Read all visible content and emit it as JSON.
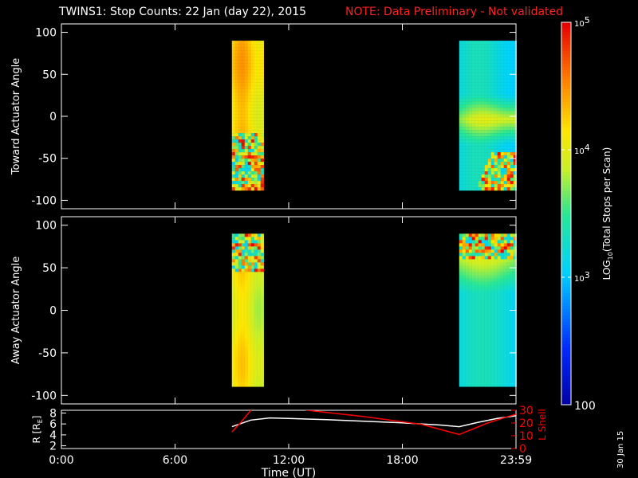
{
  "title": {
    "main": "TWINS1: Stop Counts: 22 Jan (day  22), 2015",
    "note": "NOTE: Data Preliminary - Not validated",
    "note_color": "#ff2020"
  },
  "footer_date": "30 Jan 15",
  "chart_data": [
    {
      "type": "heatmap",
      "ylabel": "Toward Actuator Angle",
      "ylim": [
        -110,
        110
      ],
      "yticks": [
        100,
        50,
        0,
        -50,
        -100
      ],
      "xlim_hours": [
        0,
        24
      ],
      "segments": [
        {
          "x_range_hours": [
            9.0,
            10.6
          ],
          "y_range": [
            -90,
            90
          ],
          "level": "orange-yellow",
          "noisy_region_y": [
            -90,
            -20
          ]
        },
        {
          "x_range_hours": [
            21.0,
            24.0
          ],
          "y_range": [
            -90,
            90
          ],
          "level": "cyan-to-orange",
          "noisy_region_y": [
            -90,
            -45
          ]
        }
      ]
    },
    {
      "type": "heatmap",
      "ylabel": "Away Actuator Angle",
      "ylim": [
        -110,
        110
      ],
      "yticks": [
        100,
        50,
        0,
        -50,
        -100
      ],
      "xlim_hours": [
        0,
        24
      ],
      "segments": [
        {
          "x_range_hours": [
            9.0,
            10.6
          ],
          "y_range": [
            -90,
            90
          ],
          "level": "yellow-green",
          "noisy_region_y": [
            45,
            90
          ]
        },
        {
          "x_range_hours": [
            21.0,
            24.0
          ],
          "y_range": [
            -90,
            90
          ],
          "level": "cyan-to-orange",
          "noisy_region_y": [
            60,
            90
          ]
        }
      ]
    },
    {
      "type": "line",
      "ylabel_left": "R [R",
      "ylabel_left_sub": "E",
      "ylabel_left_end": "]",
      "ylabel_right": "L Shell",
      "yleft_ticks": [
        8,
        6,
        4,
        2
      ],
      "yleft_lim": [
        1.5,
        8.5
      ],
      "yright_ticks": [
        30,
        20,
        10,
        0
      ],
      "yright_lim": [
        0,
        30
      ],
      "series": [
        {
          "axis": "left",
          "color": "#ffffff",
          "x": [
            9.0,
            10.0,
            11.0,
            12.0,
            14.0,
            16.0,
            18.0,
            20.0,
            21.0,
            22.0,
            23.0,
            24.0
          ],
          "y": [
            5.5,
            6.7,
            7.1,
            7.0,
            6.8,
            6.5,
            6.2,
            5.8,
            5.5,
            6.3,
            7.0,
            7.5
          ]
        },
        {
          "axis": "right",
          "color": "#ff0000",
          "x": [
            9.0,
            9.5,
            10.0,
            10.5,
            13.0,
            16.0,
            19.0,
            21.0,
            22.5,
            24.0
          ],
          "y": [
            13,
            21,
            30,
            38,
            30,
            25,
            19,
            11,
            20,
            27
          ]
        }
      ]
    }
  ],
  "xaxis": {
    "label": "Time (UT)",
    "ticks": [
      {
        "hour": 0,
        "label": "0:00"
      },
      {
        "hour": 6,
        "label": "6:00"
      },
      {
        "hour": 12,
        "label": "12:00"
      },
      {
        "hour": 18,
        "label": "18:00"
      },
      {
        "hour": 24,
        "label": "23:59"
      }
    ]
  },
  "colorbar": {
    "label": "LOG10(Total Stops per Scan)",
    "ticks": [
      {
        "value": 100000,
        "label": "10^5"
      },
      {
        "value": 10000,
        "label": "10^4"
      },
      {
        "value": 1000,
        "label": "10^3"
      },
      {
        "value": 100,
        "label": "100"
      }
    ],
    "log_range": [
      2,
      5
    ]
  }
}
